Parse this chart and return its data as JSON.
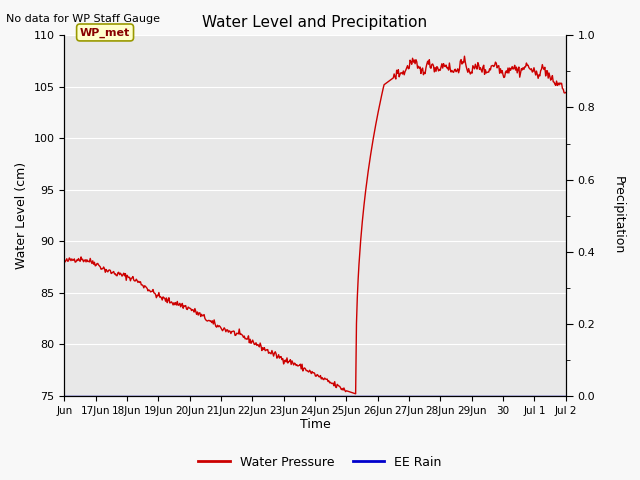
{
  "title": "Water Level and Precipitation",
  "top_left_text": "No data for WP Staff Gauge",
  "ylabel_left": "Water Level (cm)",
  "ylabel_right": "Precipitation",
  "xlabel": "Time",
  "ylim_left": [
    75,
    110
  ],
  "ylim_right": [
    0.0,
    1.0
  ],
  "legend_labels": [
    "Water Pressure",
    "EE Rain"
  ],
  "legend_colors": [
    "#cc0000",
    "#0000cc"
  ],
  "wp_met_label": "WP_met",
  "wp_met_bg": "#ffffcc",
  "wp_met_border": "#999900",
  "wp_met_text_color": "#880000",
  "plot_bg": "#e8e8e8",
  "fig_bg": "#f8f8f8",
  "grid_color": "#ffffff",
  "xtick_labels_short": [
    "17Jun",
    "18Jun",
    "19Jun",
    "20Jun",
    "21Jun",
    "22Jun",
    "23Jun",
    "24Jun",
    "25Jun",
    "26Jun",
    "27Jun",
    "28Jun",
    "29Jun",
    "30",
    "Jul 1",
    "Jul 2"
  ],
  "ytick_left": [
    75,
    80,
    85,
    90,
    95,
    100,
    105,
    110
  ],
  "ytick_right": [
    0.0,
    0.2,
    0.4,
    0.6,
    0.8,
    1.0
  ],
  "xlim": [
    0,
    16
  ],
  "n_points": 600
}
